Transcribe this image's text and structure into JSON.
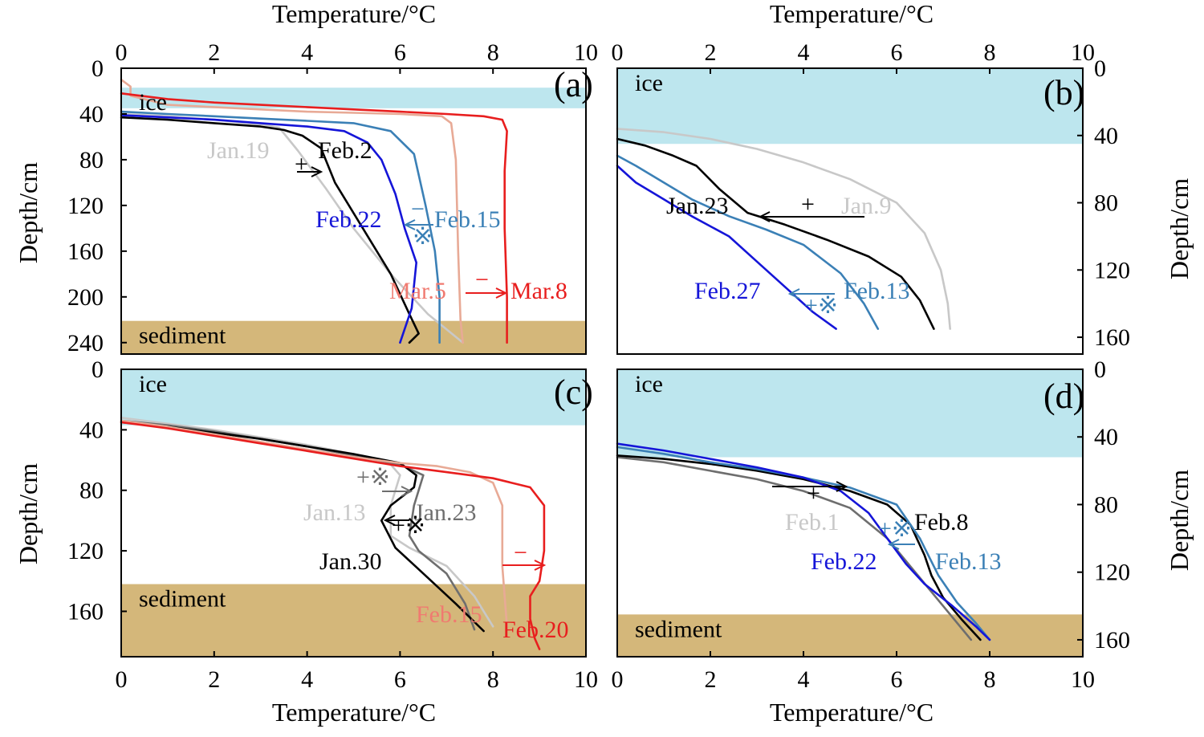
{
  "colors": {
    "ice": "#bde6ee",
    "sediment": "#d4b77a",
    "black": "#000000",
    "grey": "#6e6e6e",
    "lightgrey": "#c8c8c8",
    "blue": "#1515d8",
    "steelblue": "#3b80b6",
    "salmon": "#f07a70",
    "peach": "#e8aa96",
    "red": "#e81e1e"
  },
  "axis_labels": {
    "x_top": "Temperature/°C",
    "x_bottom": "Temperature/°C",
    "y": "Depth/cm"
  },
  "chart_data": [
    {
      "type": "line",
      "panel": "(a)",
      "xlabel": "Temperature/°C",
      "ylabel": "Depth/cm",
      "xlim": [
        0,
        10
      ],
      "ylim": [
        0,
        250
      ],
      "y_inverted": true,
      "xticks": [
        0,
        2,
        4,
        6,
        8,
        10
      ],
      "yticks": [
        0,
        40,
        80,
        120,
        160,
        200,
        240
      ],
      "regions": [
        {
          "label": "ice",
          "kind": "ice",
          "y0": 17,
          "y1": 35
        },
        {
          "label": "sediment",
          "kind": "sediment",
          "y0": 221,
          "y1": 250
        }
      ],
      "series": [
        {
          "name": "Jan.19",
          "color_key": "lightgrey",
          "x": [
            0,
            1,
            2,
            3,
            3.4,
            3.8,
            4.4,
            5.0,
            5.8,
            6.6,
            7.35
          ],
          "y": [
            40,
            42,
            45,
            49,
            52,
            72,
            105,
            140,
            180,
            215,
            240
          ]
        },
        {
          "name": "Feb.2",
          "color_key": "black",
          "x": [
            0,
            1,
            2,
            3,
            3.5,
            3.9,
            4.3,
            4.6,
            5.2,
            5.8,
            6.2,
            6.4,
            6.2
          ],
          "y": [
            43,
            45,
            48,
            51,
            54,
            59,
            70,
            100,
            140,
            180,
            215,
            232,
            240
          ]
        },
        {
          "name": "Feb.22",
          "color_key": "blue",
          "x": [
            0,
            1,
            2,
            3,
            4,
            4.8,
            5.3,
            5.6,
            5.9,
            6.1,
            6.35,
            6.25,
            6.0
          ],
          "y": [
            41,
            43,
            45,
            48,
            51,
            55,
            65,
            80,
            110,
            140,
            170,
            210,
            240
          ]
        },
        {
          "name": "Feb.15",
          "color_key": "steelblue",
          "x": [
            0,
            1,
            2,
            3,
            4,
            5,
            5.8,
            6.3,
            6.55,
            6.75,
            6.85,
            6.85
          ],
          "y": [
            38,
            40,
            42,
            44,
            46,
            48,
            55,
            75,
            120,
            160,
            200,
            240
          ]
        },
        {
          "name": "Mar.5",
          "color_key": "peach",
          "x": [
            0.0,
            0.1,
            0.2,
            0.2,
            1,
            2,
            3,
            4,
            5,
            6,
            6.9,
            7.1,
            7.2,
            7.25,
            7.3,
            7.35
          ],
          "y": [
            10,
            13,
            16,
            24,
            32,
            34,
            36,
            38,
            39,
            40,
            42,
            48,
            80,
            160,
            220,
            240
          ]
        },
        {
          "name": "Mar.8",
          "color_key": "red",
          "x": [
            0,
            1,
            2,
            3,
            4,
            5,
            6,
            7,
            7.8,
            8.2,
            8.3,
            8.25,
            8.25,
            8.3,
            8.3
          ],
          "y": [
            22,
            27,
            30,
            32,
            34,
            36,
            38,
            40,
            42,
            45,
            55,
            90,
            140,
            200,
            240
          ]
        }
      ],
      "annotations": [
        {
          "text": "+",
          "arrow": "Jan.19 → Feb.2"
        },
        {
          "text": "−",
          "arrow": "Feb.15 → Feb.22"
        },
        {
          "text": "※",
          "arrow": "Feb.15 → Feb.22"
        },
        {
          "text": "−",
          "arrow": "Mar.5 → Mar.8"
        }
      ]
    },
    {
      "type": "line",
      "panel": "(b)",
      "xlabel": "Temperature/°C",
      "ylabel": "Depth/cm",
      "xlim": [
        0,
        10
      ],
      "ylim": [
        0,
        170
      ],
      "y_inverted": true,
      "xticks": [
        0,
        2,
        4,
        6,
        8,
        10
      ],
      "yticks": [
        0,
        40,
        80,
        120,
        160
      ],
      "regions": [
        {
          "label": "ice",
          "kind": "ice",
          "y0": 0,
          "y1": 45
        }
      ],
      "series": [
        {
          "name": "Jan.9",
          "color_key": "lightgrey",
          "x": [
            0,
            1,
            2,
            3,
            4,
            5,
            6,
            6.6,
            6.95,
            7.1,
            7.15
          ],
          "y": [
            36,
            38,
            42,
            48,
            56,
            66,
            80,
            98,
            120,
            140,
            155
          ]
        },
        {
          "name": "Jan.23",
          "color_key": "black",
          "x": [
            0,
            0.6,
            1.2,
            1.7,
            2.2,
            2.8,
            3.6,
            4.5,
            5.4,
            6.1,
            6.5,
            6.8
          ],
          "y": [
            42,
            46,
            52,
            58,
            72,
            86,
            93,
            102,
            112,
            124,
            138,
            155
          ]
        },
        {
          "name": "Feb.13",
          "color_key": "steelblue",
          "x": [
            0,
            0.4,
            1,
            1.6,
            2.4,
            3.2,
            4,
            4.8,
            5.3,
            5.6
          ],
          "y": [
            52,
            58,
            68,
            78,
            88,
            96,
            105,
            122,
            140,
            155
          ]
        },
        {
          "name": "Feb.27",
          "color_key": "blue",
          "x": [
            0,
            0.4,
            1,
            1.6,
            2.4,
            3.0,
            3.6,
            4.2,
            4.7
          ],
          "y": [
            58,
            68,
            78,
            88,
            100,
            115,
            130,
            145,
            155
          ]
        }
      ],
      "annotations": [
        {
          "text": "+",
          "arrow": "Jan.9 → Jan.23"
        },
        {
          "text": "+※",
          "arrow": "Feb.13 → Feb.27"
        }
      ]
    },
    {
      "type": "line",
      "panel": "(c)",
      "xlabel": "Temperature/°C",
      "ylabel": "Depth/cm",
      "xlim": [
        0,
        10
      ],
      "ylim": [
        0,
        190
      ],
      "y_inverted": true,
      "xticks": [
        0,
        2,
        4,
        6,
        8,
        10
      ],
      "yticks": [
        0,
        40,
        80,
        120,
        160
      ],
      "regions": [
        {
          "label": "ice",
          "kind": "ice",
          "y0": 0,
          "y1": 37
        },
        {
          "label": "sediment",
          "kind": "sediment",
          "y0": 142,
          "y1": 190
        }
      ],
      "series": [
        {
          "name": "Jan.13",
          "color_key": "lightgrey",
          "x": [
            0,
            1,
            2,
            3,
            4,
            5,
            5.8,
            6.0,
            5.8,
            5.8,
            6.2,
            7.0,
            7.6,
            8.0
          ],
          "y": [
            32,
            36,
            40,
            45,
            50,
            56,
            63,
            70,
            90,
            110,
            118,
            130,
            150,
            170
          ]
        },
        {
          "name": "Jan.23",
          "color_key": "grey",
          "x": [
            0,
            1,
            2,
            3,
            4,
            5,
            6,
            6.5,
            6.3,
            6.2,
            6.4,
            7.0,
            7.4,
            7.6
          ],
          "y": [
            34,
            37,
            41,
            46,
            51,
            57,
            63,
            70,
            90,
            110,
            120,
            135,
            155,
            172
          ]
        },
        {
          "name": "Jan.30",
          "color_key": "black",
          "x": [
            0,
            1,
            2,
            3,
            4,
            5,
            6,
            6.35,
            6.3,
            5.8,
            5.6,
            5.9,
            6.5,
            7.2,
            7.8
          ],
          "y": [
            35,
            38,
            42,
            46,
            51,
            56,
            62,
            70,
            78,
            90,
            100,
            118,
            135,
            155,
            173
          ]
        },
        {
          "name": "Feb.15",
          "color_key": "peach",
          "x": [
            0,
            1,
            2,
            3,
            4,
            5,
            6,
            6.8,
            7.5,
            8.0,
            8.2,
            8.2,
            8.3
          ],
          "y": [
            34,
            38,
            43,
            48,
            53,
            58,
            62,
            64,
            68,
            75,
            90,
            130,
            170
          ]
        },
        {
          "name": "Feb.20",
          "color_key": "red",
          "x": [
            0,
            1,
            2,
            3,
            4,
            5,
            6,
            7,
            8,
            8.8,
            9.1,
            9.1,
            9.0,
            8.8,
            8.8,
            8.9,
            9.0
          ],
          "y": [
            35,
            39,
            44,
            49,
            54,
            59,
            64,
            68,
            72,
            78,
            90,
            120,
            140,
            150,
            165,
            178,
            185
          ]
        }
      ],
      "annotations": [
        {
          "text": "+※",
          "arrow": "Jan.13 → Jan.23"
        },
        {
          "text": "+※",
          "arrow": "Jan.23 → Jan.30"
        },
        {
          "text": "−",
          "arrow": "Feb.15 → Feb.20"
        }
      ]
    },
    {
      "type": "line",
      "panel": "(d)",
      "xlabel": "Temperature/°C",
      "ylabel": "Depth/cm",
      "xlim": [
        0,
        10
      ],
      "ylim": [
        0,
        170
      ],
      "y_inverted": true,
      "xticks": [
        0,
        2,
        4,
        6,
        8,
        10
      ],
      "yticks": [
        0,
        40,
        80,
        120,
        160
      ],
      "regions": [
        {
          "label": "ice",
          "kind": "ice",
          "y0": 0,
          "y1": 52
        },
        {
          "label": "sediment",
          "kind": "sediment",
          "y0": 145,
          "y1": 170
        }
      ],
      "series": [
        {
          "name": "Feb.1",
          "color_key": "grey",
          "x": [
            0,
            1,
            2,
            3,
            4,
            5,
            5.8,
            6.4,
            7.0,
            7.6
          ],
          "y": [
            52,
            55,
            60,
            65,
            72,
            82,
            100,
            120,
            140,
            160
          ]
        },
        {
          "name": "Feb.8",
          "color_key": "black",
          "x": [
            0,
            1,
            2,
            3,
            4,
            5,
            5.8,
            6.3,
            6.6,
            6.75,
            7.0,
            7.4,
            7.8
          ],
          "y": [
            51,
            53,
            56,
            60,
            65,
            72,
            80,
            92,
            110,
            122,
            135,
            148,
            160
          ]
        },
        {
          "name": "Feb.13",
          "color_key": "steelblue",
          "x": [
            0,
            1,
            2,
            3,
            4,
            5,
            6,
            6.5,
            6.9,
            7.3,
            7.7,
            8.0
          ],
          "y": [
            46,
            50,
            55,
            59,
            64,
            70,
            80,
            100,
            122,
            138,
            150,
            160
          ]
        },
        {
          "name": "Feb.22",
          "color_key": "blue",
          "x": [
            0,
            1,
            2,
            3,
            4,
            4.8,
            5.4,
            5.8,
            6.2,
            6.6,
            7.2,
            7.7,
            8.0
          ],
          "y": [
            44,
            48,
            53,
            58,
            64,
            72,
            85,
            100,
            115,
            127,
            140,
            152,
            160
          ]
        }
      ],
      "annotations": [
        {
          "text": "+",
          "arrow": "Feb.1 → Feb.8"
        },
        {
          "text": "+※",
          "arrow": "Feb.13 → Feb.22"
        }
      ]
    }
  ]
}
